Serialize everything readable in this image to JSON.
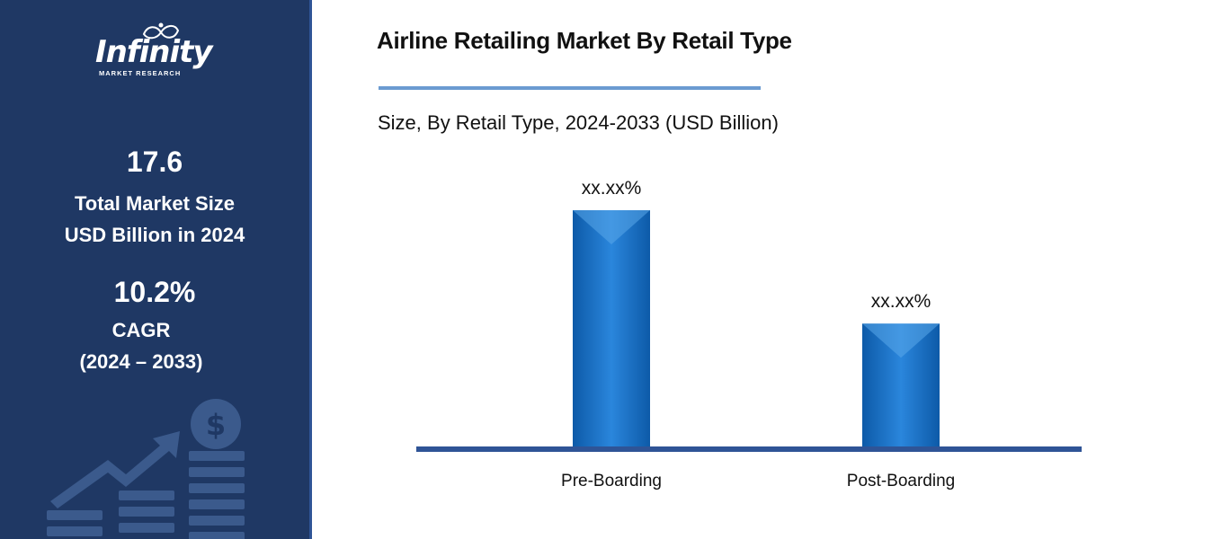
{
  "sidebar": {
    "logo": {
      "word": "Infinity",
      "sub": "MARKET RESEARCH"
    },
    "market_size": {
      "value": "17.6",
      "label_line1": "Total Market Size",
      "label_line2": "USD Billion in 2024"
    },
    "cagr": {
      "value": "10.2%",
      "label_line1": "CAGR",
      "label_line2": "(2024 – 2033)"
    },
    "decor_icon": "dollar-growth-icon"
  },
  "header": {
    "title": "Airline Retailing Market By Retail Type",
    "subtitle": "Size, By Retail Type, 2024-2033 (USD Billion)"
  },
  "colors": {
    "sidebar": "#1f3864",
    "bar": "#1a6fc4",
    "axis": "#2f5496",
    "rule": "#6b9bd1"
  },
  "chart_data": {
    "type": "bar",
    "title": "Airline Retailing Market By Retail Type",
    "subtitle": "Size, By Retail Type, 2024-2033 (USD Billion)",
    "categories": [
      "Pre-Boarding",
      "Post-Boarding"
    ],
    "values": [
      100,
      52
    ],
    "data_labels": [
      "xx.xx%",
      "xx.xx%"
    ],
    "ylim": [
      0,
      100
    ],
    "grid": false,
    "legend": "none"
  }
}
